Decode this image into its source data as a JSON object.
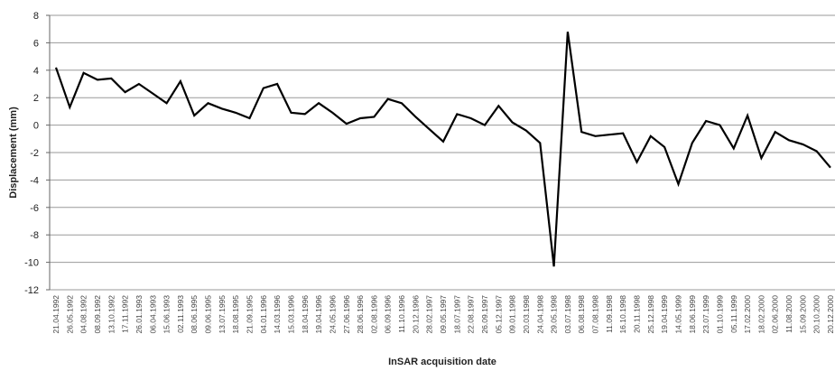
{
  "chart_data": {
    "type": "line",
    "y_label": "Displacement (mm)",
    "x_label": "InSAR acquisition date",
    "categories": [
      "21.04.1992",
      "26.05.1992",
      "04.08.1992",
      "08.09.1992",
      "13.10.1992",
      "17.11.1992",
      "26.01.1993",
      "06.04.1993",
      "15.06.1993",
      "02.11.1993",
      "08.06.1995",
      "09.06.1995",
      "13.07.1995",
      "18.08.1995",
      "21.09.1995",
      "04.01.1996",
      "14.03.1996",
      "15.03.1996",
      "18.04.1996",
      "19.04.1996",
      "24.05.1996",
      "27.06.1996",
      "28.06.1996",
      "02.08.1996",
      "06.09.1996",
      "11.10.1996",
      "20.12.1996",
      "28.02.1997",
      "09.05.1997",
      "18.07.1997",
      "22.08.1997",
      "26.09.1997",
      "05.12.1997",
      "09.01.1998",
      "20.03.1998",
      "24.04.1998",
      "29.05.1998",
      "03.07.1998",
      "06.08.1998",
      "07.08.1998",
      "11.09.1998",
      "16.10.1998",
      "20.11.1998",
      "25.12.1998",
      "19.04.1999",
      "14.05.1999",
      "18.06.1999",
      "23.07.1999",
      "01.10.1999",
      "05.11.1999",
      "17.02.2000",
      "18.02.2000",
      "02.06.2000",
      "11.08.2000",
      "15.09.2000",
      "20.10.2000",
      "20.12.2000"
    ],
    "values": [
      4.2,
      1.3,
      3.8,
      3.3,
      3.4,
      2.4,
      3.0,
      2.3,
      1.6,
      3.2,
      0.7,
      1.6,
      1.2,
      0.9,
      0.5,
      2.7,
      3.0,
      0.9,
      0.8,
      1.6,
      0.9,
      0.1,
      0.5,
      0.6,
      1.9,
      1.6,
      0.6,
      -0.3,
      -1.2,
      0.8,
      0.5,
      0.0,
      1.4,
      0.2,
      -0.4,
      -1.3,
      -10.3,
      6.8,
      -0.5,
      -0.8,
      -0.7,
      -0.6,
      -2.7,
      -0.8,
      -1.6,
      -4.3,
      -1.3,
      0.3,
      0.0,
      -1.7,
      0.7,
      -2.4,
      -0.5,
      -1.1,
      -1.4,
      -1.9,
      -3.1
    ],
    "color": "#000000",
    "ylim": [
      -12,
      8
    ],
    "yticks": [
      -12,
      -10,
      -8,
      -6,
      -4,
      -2,
      0,
      2,
      4,
      6,
      8
    ],
    "grid": true
  }
}
